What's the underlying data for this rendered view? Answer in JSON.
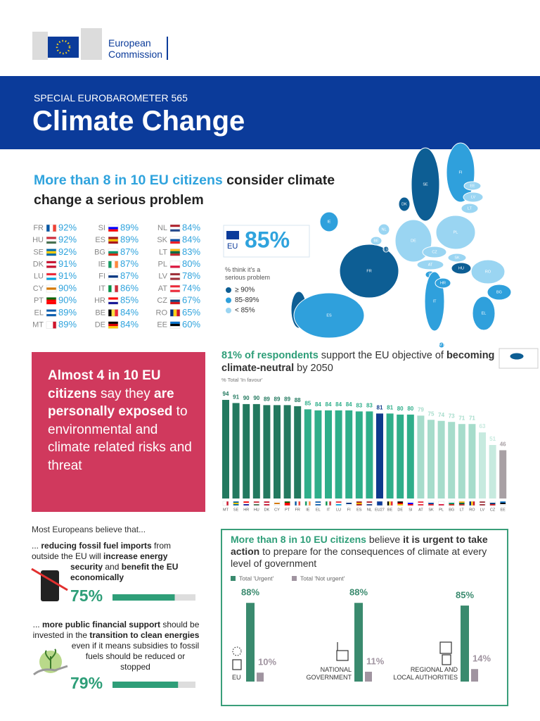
{
  "header": {
    "org_lines": [
      "European",
      "Commission"
    ]
  },
  "banner": {
    "kicker": "SPECIAL EUROBAROMETER 565",
    "title": "Climate Change"
  },
  "serious": {
    "headline": [
      {
        "text": "More than 8 in 10 EU citizens",
        "style": "highlight"
      },
      {
        "text": " consider climate change a serious problem"
      }
    ],
    "highlight_color": "#2fa3dd",
    "countries": [
      {
        "code": "FR",
        "value": "92%",
        "color": "#0d5e94"
      },
      {
        "code": "HU",
        "value": "92%",
        "color": "#0d5e94"
      },
      {
        "code": "SE",
        "value": "92%",
        "color": "#0d5e94"
      },
      {
        "code": "DK",
        "value": "91%",
        "color": "#0d5e94"
      },
      {
        "code": "LU",
        "value": "91%",
        "color": "#0d5e94"
      },
      {
        "code": "CY",
        "value": "90%",
        "color": "#0d5e94"
      },
      {
        "code": "PT",
        "value": "90%",
        "color": "#0d5e94"
      },
      {
        "code": "EL",
        "value": "89%",
        "color": "#2fa0dc"
      },
      {
        "code": "MT",
        "value": "89%",
        "color": "#2fa0dc"
      },
      {
        "code": "SI",
        "value": "89%",
        "color": "#2fa0dc"
      },
      {
        "code": "ES",
        "value": "89%",
        "color": "#2fa0dc"
      },
      {
        "code": "BG",
        "value": "87%",
        "color": "#2fa0dc"
      },
      {
        "code": "IE",
        "value": "87%",
        "color": "#2fa0dc"
      },
      {
        "code": "FI",
        "value": "87%",
        "color": "#2fa0dc"
      },
      {
        "code": "IT",
        "value": "86%",
        "color": "#2fa0dc"
      },
      {
        "code": "HR",
        "value": "85%",
        "color": "#2fa0dc"
      },
      {
        "code": "BE",
        "value": "84%",
        "color": "#9ad5f2"
      },
      {
        "code": "DE",
        "value": "84%",
        "color": "#9ad5f2"
      },
      {
        "code": "NL",
        "value": "84%",
        "color": "#9ad5f2"
      },
      {
        "code": "SK",
        "value": "84%",
        "color": "#9ad5f2"
      },
      {
        "code": "LT",
        "value": "83%",
        "color": "#9ad5f2"
      },
      {
        "code": "PL",
        "value": "80%",
        "color": "#9ad5f2"
      },
      {
        "code": "LV",
        "value": "78%",
        "color": "#9ad5f2"
      },
      {
        "code": "AT",
        "value": "74%",
        "color": "#9ad5f2"
      },
      {
        "code": "CZ",
        "value": "67%",
        "color": "#9ad5f2"
      },
      {
        "code": "RO",
        "value": "65%",
        "color": "#9ad5f2"
      },
      {
        "code": "EE",
        "value": "60%",
        "color": "#9ad5f2"
      }
    ],
    "eu": {
      "code": "EU",
      "value": "85%"
    },
    "legend_title": "% think it's a serious problem",
    "legend": [
      {
        "label": "≥ 90%",
        "color": "#0d5e94"
      },
      {
        "label": "85-89%",
        "color": "#2fa0dc"
      },
      {
        "label": "< 85%",
        "color": "#9ad5f2"
      }
    ]
  },
  "exposed": {
    "color": "#d0395d",
    "text": [
      {
        "text": "Almost 4 in 10 EU citizens",
        "style": "bold"
      },
      {
        "text": " say they "
      },
      {
        "text": "are personally exposed",
        "style": "bold"
      },
      {
        "text": " to environmental and climate related risks and threat"
      }
    ]
  },
  "neutral_chart": {
    "type": "bar",
    "title": [
      {
        "text": "81% of respondents",
        "style": "highlight"
      },
      {
        "text": " support the EU objective of "
      },
      {
        "text": "becoming climate-neutral",
        "style": "bold"
      },
      {
        "text": " by 2050"
      }
    ],
    "highlight_color": "#2e9e78",
    "subtitle": "% Total 'In favour'",
    "categories": [
      "MT",
      "SE",
      "HR",
      "HU",
      "DK",
      "CY",
      "PT",
      "FR",
      "IE",
      "EL",
      "IT",
      "LU",
      "FI",
      "ES",
      "NL",
      "EU27",
      "BE",
      "DE",
      "SI",
      "AT",
      "SK",
      "PL",
      "BG",
      "LT",
      "RO",
      "LV",
      "CZ",
      "EE"
    ],
    "values": [
      94,
      91,
      90,
      90,
      89,
      89,
      89,
      88,
      85,
      84,
      84,
      84,
      84,
      83,
      83,
      81,
      81,
      80,
      80,
      79,
      75,
      74,
      73,
      71,
      71,
      63,
      51,
      46
    ],
    "colors": [
      "#23795f",
      "#23795f",
      "#23795f",
      "#23795f",
      "#23795f",
      "#23795f",
      "#23795f",
      "#23795f",
      "#2fae8a",
      "#2fae8a",
      "#2fae8a",
      "#2fae8a",
      "#2fae8a",
      "#2fae8a",
      "#2fae8a",
      "#0e3a8c",
      "#2fae8a",
      "#2fae8a",
      "#2fae8a",
      "#a6dccb",
      "#a6dccb",
      "#a6dccb",
      "#a6dccb",
      "#a6dccb",
      "#a6dccb",
      "#c7eadf",
      "#c7eadf",
      "#a8a0a4"
    ]
  },
  "believe": {
    "intro": "Most Europeans believe that...",
    "color": "#2e9e78",
    "xlim": [
      0,
      100
    ],
    "items": [
      {
        "text": [
          {
            "text": "... "
          },
          {
            "text": "reducing fossil fuel imports",
            "style": "bold"
          },
          {
            "text": " from outside the EU will "
          },
          {
            "text": "increase energy security",
            "style": "bold"
          },
          {
            "text": " and "
          },
          {
            "text": "benefit the EU economically",
            "style": "bold"
          }
        ],
        "value": 75,
        "label": "75%"
      },
      {
        "text": [
          {
            "text": "... "
          },
          {
            "text": "more public financial support",
            "style": "bold"
          },
          {
            "text": " should be invested in the "
          },
          {
            "text": "transition to clean energies",
            "style": "bold"
          },
          {
            "text": " even if it means subsidies to fossil fuels should be reduced or stopped"
          }
        ],
        "value": 79,
        "label": "79%"
      }
    ]
  },
  "urgent_chart": {
    "type": "bar",
    "title": [
      {
        "text": "More than 8 in 10 EU citizens",
        "style": "highlight"
      },
      {
        "text": " believe "
      },
      {
        "text": "it is urgent to take action",
        "style": "bold"
      },
      {
        "text": " to prepare for the consequences of climate at every level of government"
      }
    ],
    "highlight_color": "#2e9e78",
    "categories": [
      "EU",
      "NATIONAL GOVERNMENT",
      "REGIONAL AND LOCAL AUTHORITIES"
    ],
    "series": [
      {
        "name": "Total 'Urgent'",
        "color": "#3a8a6e",
        "values": [
          88,
          88,
          85
        ],
        "value_labels": [
          "88%",
          "88%",
          "85%"
        ]
      },
      {
        "name": "Total 'Not urgent'",
        "color": "#a094a0",
        "values": [
          10,
          11,
          14
        ],
        "value_labels": [
          "10%",
          "11%",
          "14%"
        ]
      }
    ]
  }
}
